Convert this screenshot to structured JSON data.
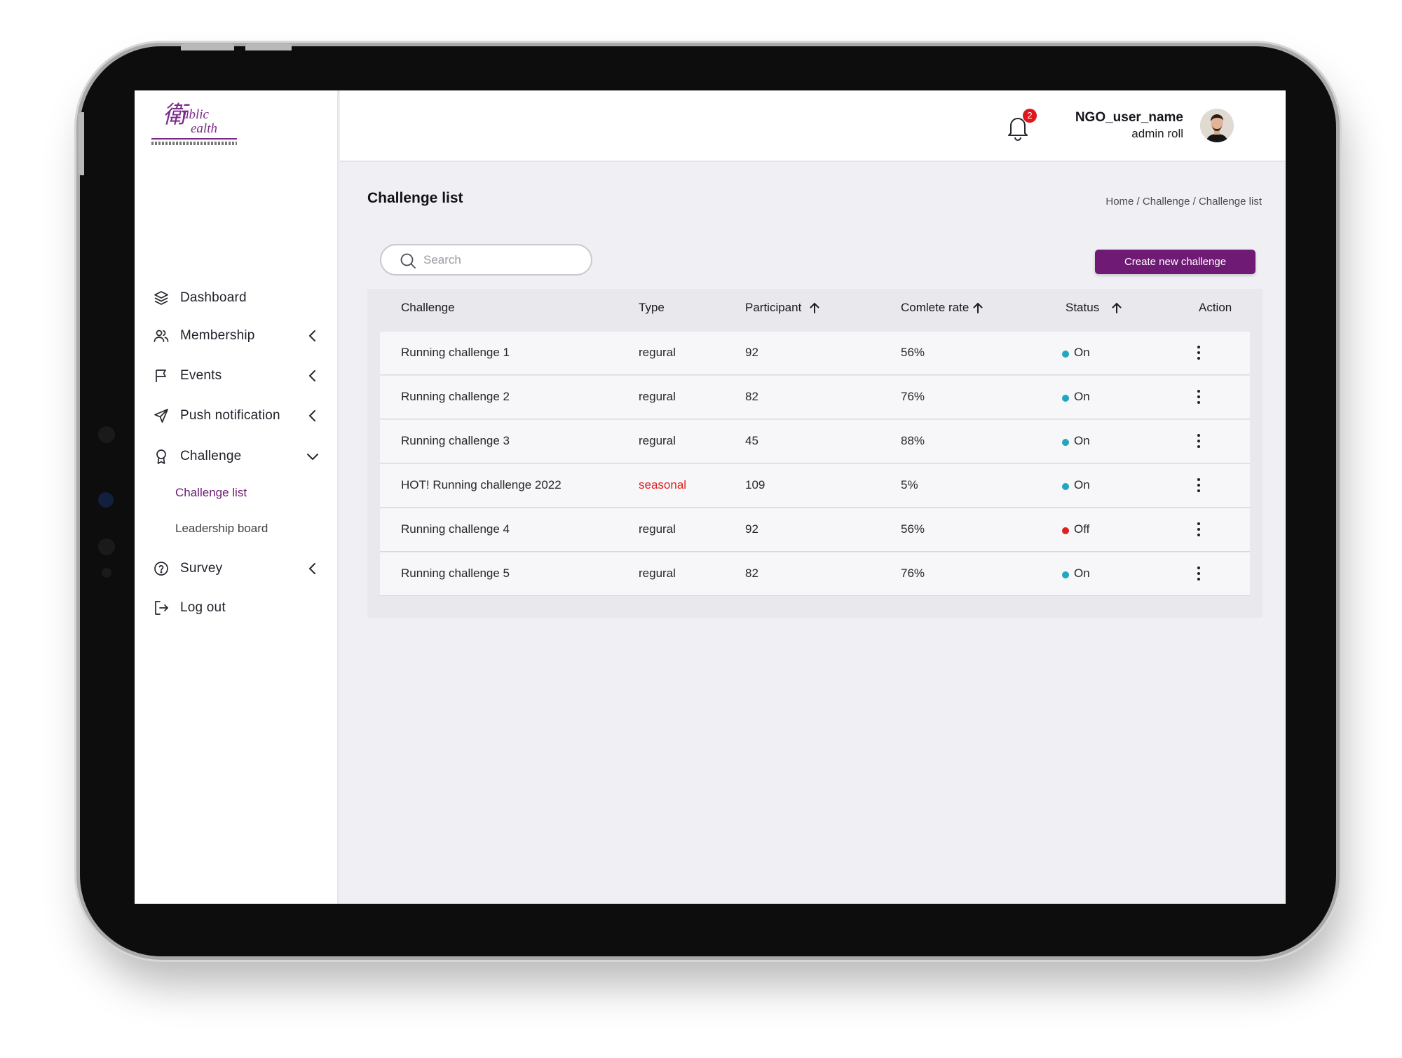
{
  "brand": {
    "logo_name": "public-health-logo",
    "logo_mark": "衛",
    "logo_word1": "ublic",
    "logo_word2": "ealth",
    "accent_color": "#6f1a74"
  },
  "sidebar": {
    "items": [
      {
        "label": "Dashboard",
        "icon": "layers-icon"
      },
      {
        "label": "Membership",
        "icon": "users-icon",
        "chevron": "chevron-left-icon"
      },
      {
        "label": "Events",
        "icon": "flag-icon",
        "chevron": "chevron-left-icon"
      },
      {
        "label": "Push notification",
        "icon": "send-icon",
        "chevron": "chevron-left-icon"
      },
      {
        "label": "Challenge",
        "icon": "award-icon",
        "chevron": "chevron-down-icon"
      },
      {
        "label": "Survey",
        "icon": "help-circle-icon",
        "chevron": "chevron-left-icon"
      },
      {
        "label": "Log out",
        "icon": "logout-icon"
      }
    ],
    "sub_items": [
      {
        "label": "Challenge list",
        "active": true
      },
      {
        "label": "Leadership board",
        "active": false
      }
    ]
  },
  "header": {
    "notification_count": "2",
    "user_name": "NGO_user_name",
    "user_role": "admin roll"
  },
  "main": {
    "title": "Challenge list",
    "breadcrumb": "Home / Challenge / Challenge list",
    "search_placeholder": "Search",
    "create_button": "Create new challenge"
  },
  "table": {
    "headers": {
      "challenge": "Challenge",
      "type": "Type",
      "participant": "Participant",
      "complete_rate": "Comlete rate",
      "status": "Status",
      "action": "Action"
    },
    "rows": [
      {
        "challenge": "Running challenge 1",
        "type": "regural",
        "participant": "92",
        "rate": "56%",
        "status": "On"
      },
      {
        "challenge": "Running challenge 2",
        "type": "regural",
        "participant": "82",
        "rate": "76%",
        "status": "On"
      },
      {
        "challenge": "Running challenge 3",
        "type": "regural",
        "participant": "45",
        "rate": "88%",
        "status": "On"
      },
      {
        "challenge": "HOT! Running challenge 2022",
        "type": "seasonal",
        "participant": "109",
        "rate": "5%",
        "status": "On"
      },
      {
        "challenge": "Running challenge 4",
        "type": "regural",
        "participant": "92",
        "rate": "56%",
        "status": "Off"
      },
      {
        "challenge": "Running challenge 5",
        "type": "regural",
        "participant": "82",
        "rate": "76%",
        "status": "On"
      }
    ],
    "status_colors": {
      "On": "#1fa7bd",
      "Off": "#e0201e"
    },
    "seasonal_color": "#e0201e"
  }
}
